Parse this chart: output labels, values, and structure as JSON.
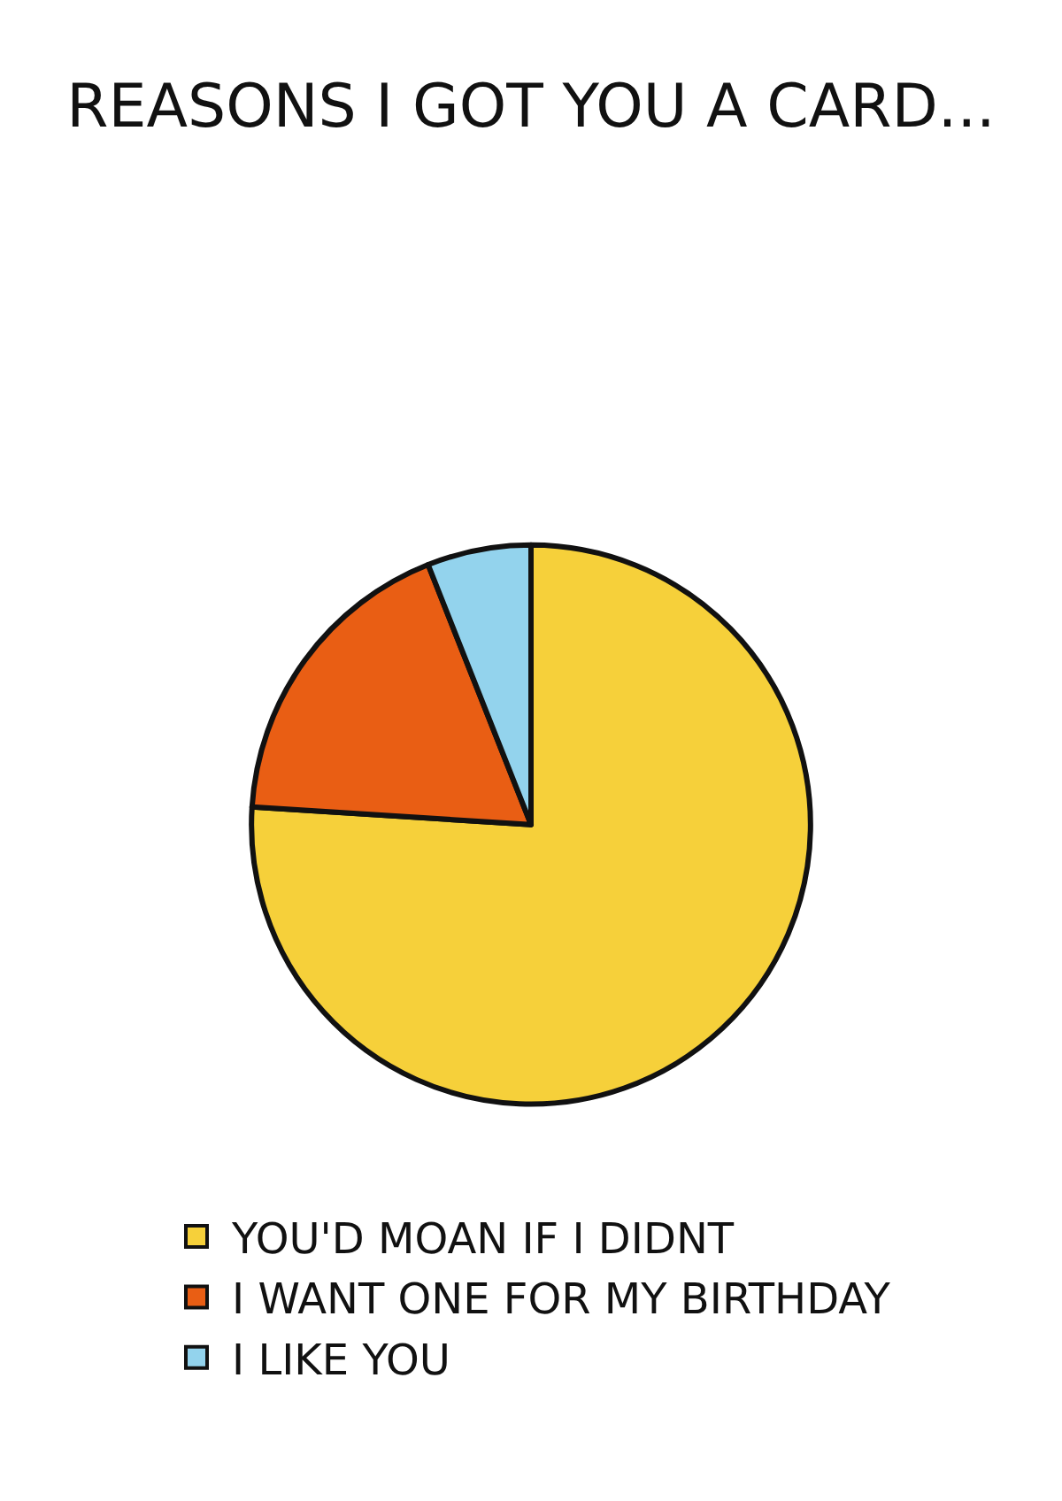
{
  "chart_data": {
    "type": "pie",
    "title": "REASONS I GOT YOU A CARD...",
    "categories": [
      "YOU'D MOAN IF I DIDNT",
      "I WANT ONE FOR MY BIRTHDAY",
      "I LIKE YOU"
    ],
    "values": [
      76,
      18,
      6
    ],
    "colors": [
      "#f6d03a",
      "#e95e14",
      "#93d3ed"
    ],
    "legend": "bottom"
  }
}
